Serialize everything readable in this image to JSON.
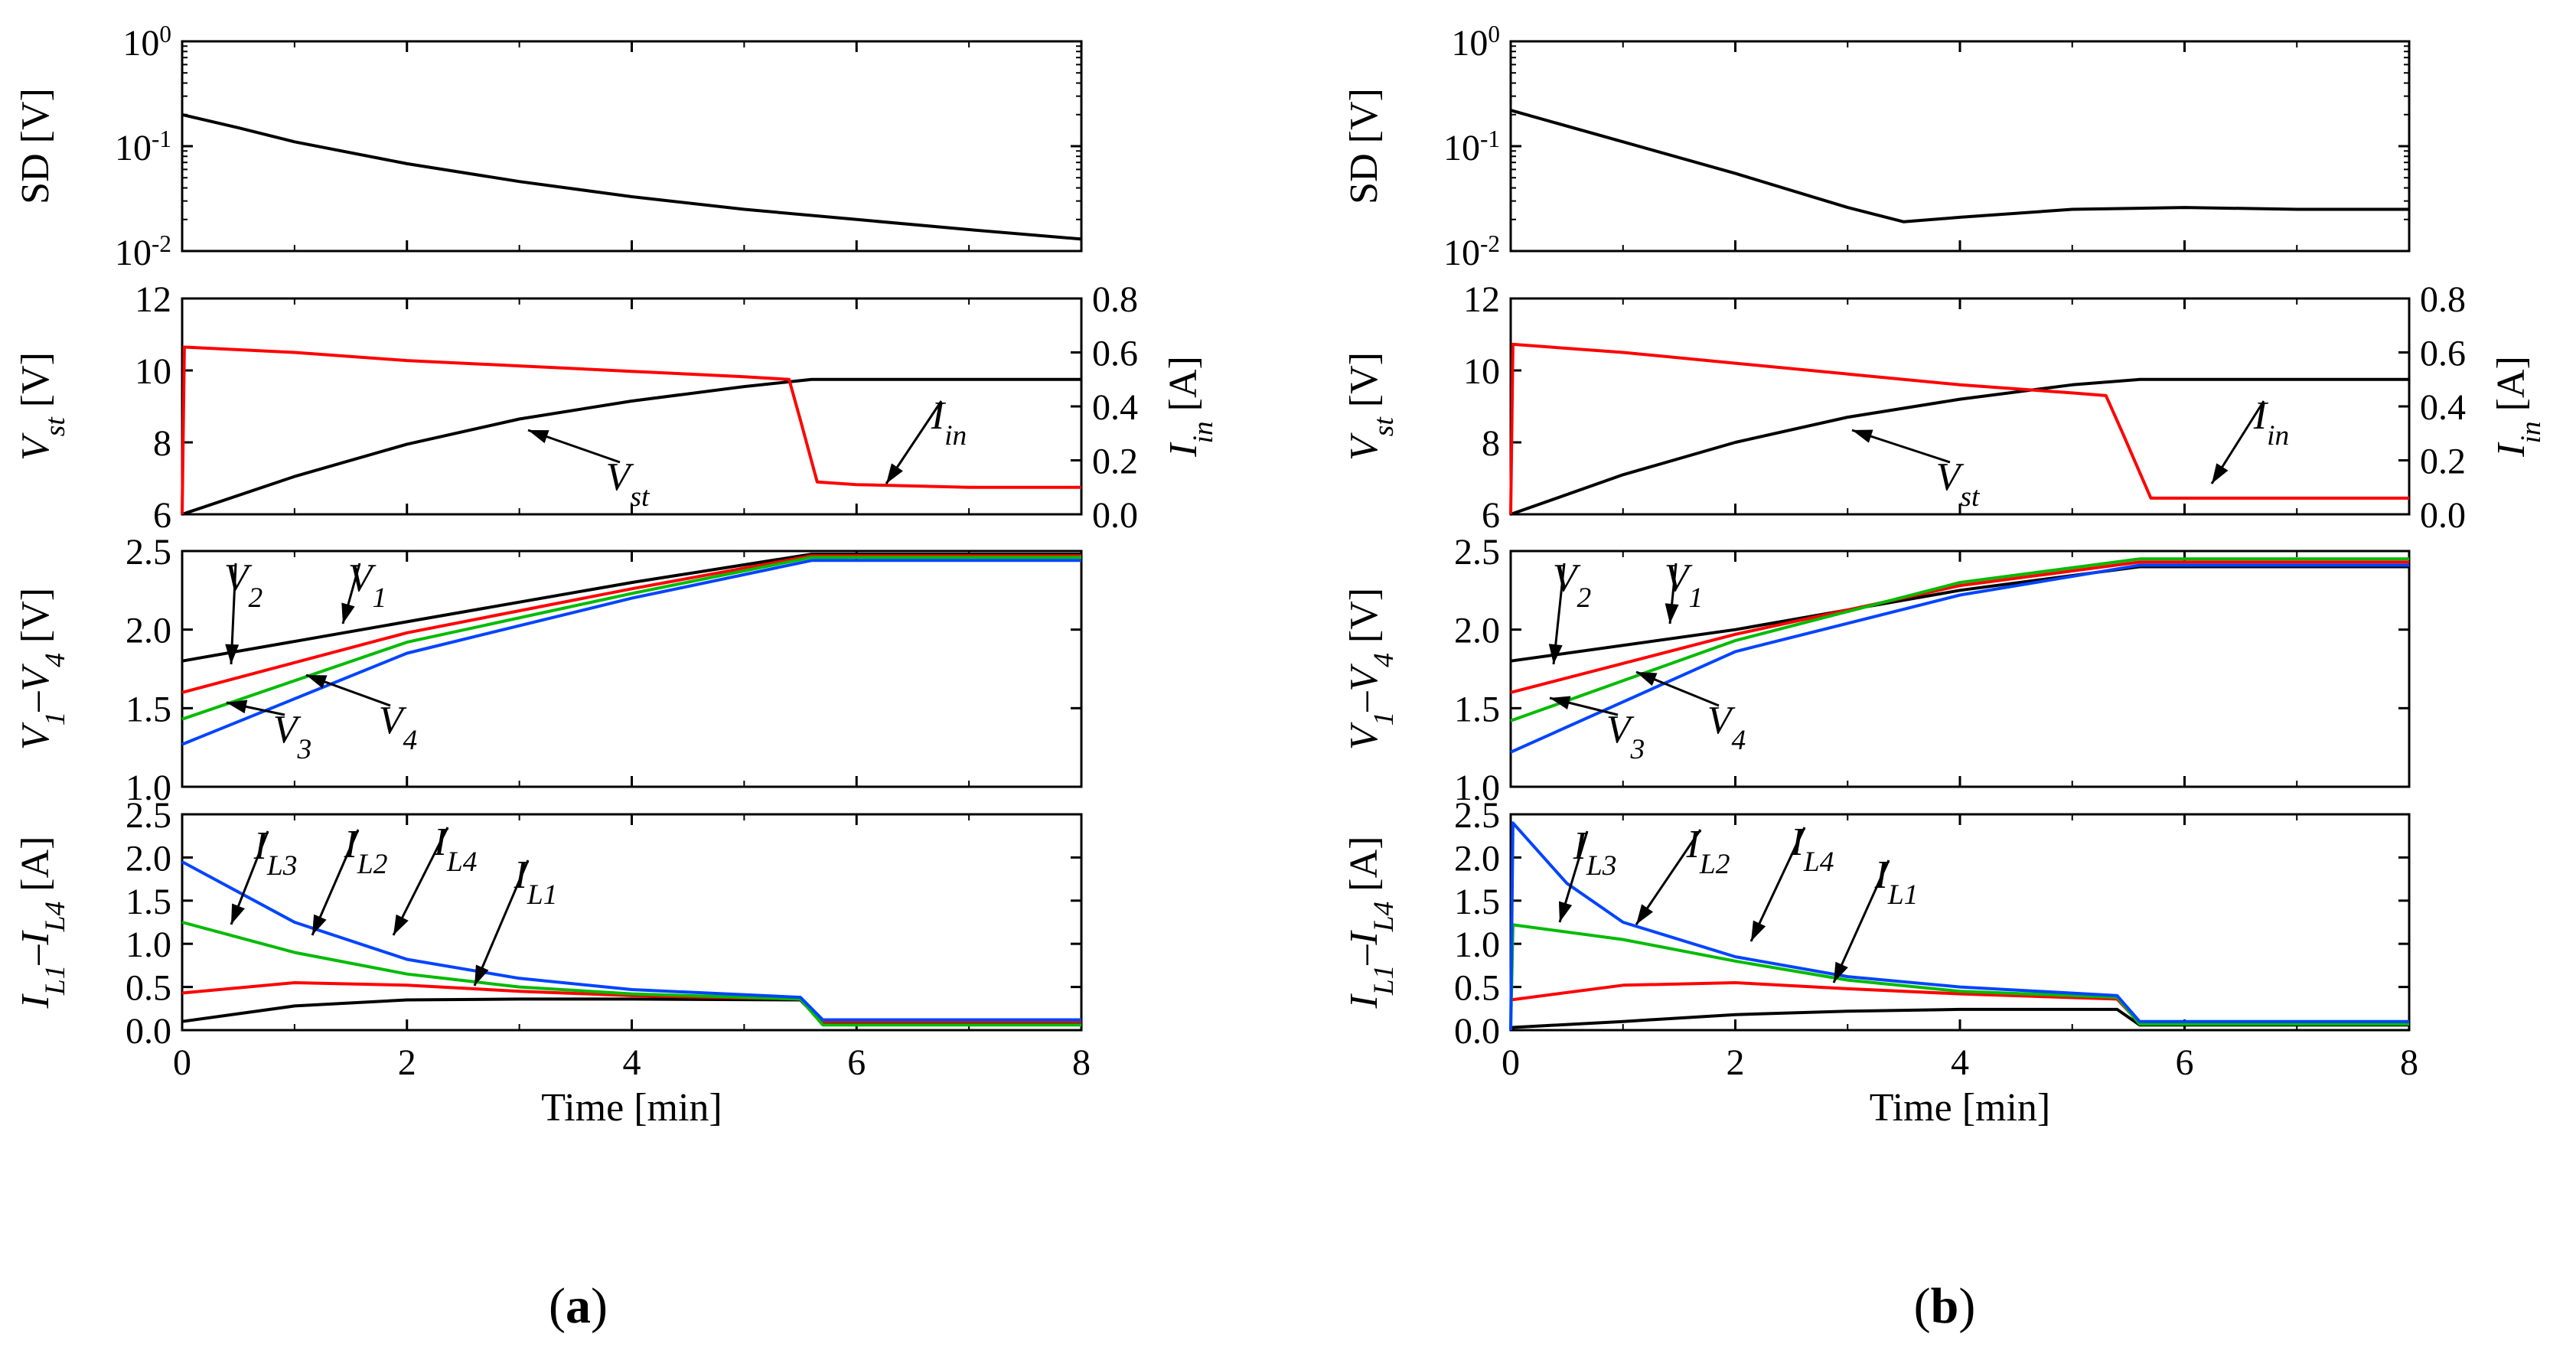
{
  "panel_labels": [
    "(a)",
    "(b)"
  ],
  "x_axis": {
    "label": "Time [min]",
    "ticks": [
      "0",
      "2",
      "4",
      "6",
      "8"
    ],
    "range": [
      0,
      8
    ]
  },
  "chart_data": [
    {
      "panel": "a",
      "type": "line",
      "shared_x": {
        "label": "Time [min]",
        "unit": "min",
        "range": [
          0,
          8
        ],
        "ticks": [
          0,
          2,
          4,
          6,
          8
        ]
      },
      "subplots": [
        {
          "id": "sd",
          "ylabel": "SD [V]",
          "yscale": "log",
          "ylim": [
            0.01,
            1
          ],
          "yticks": [
            "10^0",
            "10^-1",
            "10^-2"
          ],
          "series": [
            {
              "color": "#000000",
              "x": [
                0,
                0.5,
                1,
                2,
                3,
                4,
                5,
                6,
                7,
                8
              ],
              "y": [
                0.2,
                0.15,
                0.11,
                0.068,
                0.046,
                0.033,
                0.025,
                0.02,
                0.016,
                0.013
              ]
            }
          ]
        },
        {
          "id": "vst",
          "ylabel": "V_st [V]",
          "ylim": [
            6,
            12
          ],
          "yticks": [
            "6",
            "8",
            "10",
            "12"
          ],
          "y2label": "I_in [A]",
          "y2lim": [
            0.0,
            0.8
          ],
          "y2ticks": [
            "0.0",
            "0.2",
            "0.4",
            "0.6",
            "0.8"
          ],
          "series": [
            {
              "name": "V_st",
              "axis": "left",
              "color": "#000000",
              "x": [
                0,
                1,
                2,
                3,
                4,
                5,
                5.6,
                6,
                8
              ],
              "y": [
                6.0,
                7.05,
                7.95,
                8.65,
                9.15,
                9.55,
                9.75,
                9.75,
                9.75
              ]
            },
            {
              "name": "I_in",
              "axis": "right",
              "color": "#ff0000",
              "x": [
                0,
                0.02,
                1,
                2,
                3,
                4,
                5,
                5.4,
                5.5,
                5.65,
                6,
                7,
                8
              ],
              "y": [
                0.0,
                0.62,
                0.6,
                0.57,
                0.55,
                0.53,
                0.51,
                0.5,
                0.35,
                0.12,
                0.11,
                0.1,
                0.1
              ]
            }
          ],
          "annotations": [
            "V_st",
            "I_in"
          ]
        },
        {
          "id": "v",
          "ylabel": "V_1–V_4 [V]",
          "ylim": [
            1.0,
            2.5
          ],
          "yticks": [
            "1.0",
            "1.5",
            "2.0",
            "2.5"
          ],
          "series": [
            {
              "name": "V_1",
              "color": "#000000",
              "x": [
                0,
                2,
                4,
                5.6,
                8
              ],
              "y": [
                1.8,
                2.05,
                2.3,
                2.48,
                2.48
              ]
            },
            {
              "name": "V_2",
              "color": "#ff0000",
              "x": [
                0,
                2,
                4,
                5.6,
                8
              ],
              "y": [
                1.6,
                1.98,
                2.26,
                2.47,
                2.47
              ]
            },
            {
              "name": "V_3",
              "color": "#00bb00",
              "x": [
                0,
                2,
                4,
                5.6,
                8
              ],
              "y": [
                1.43,
                1.92,
                2.23,
                2.46,
                2.46
              ]
            },
            {
              "name": "V_4",
              "color": "#0044ff",
              "x": [
                0,
                2,
                4,
                5.6,
                8
              ],
              "y": [
                1.27,
                1.85,
                2.2,
                2.44,
                2.44
              ]
            }
          ],
          "annotations": [
            "V_1",
            "V_2",
            "V_3",
            "V_4"
          ]
        },
        {
          "id": "il",
          "ylabel": "I_L1–I_L4 [A]",
          "ylim": [
            0.0,
            2.5
          ],
          "yticks": [
            "0.0",
            "0.5",
            "1.0",
            "1.5",
            "2.0",
            "2.5"
          ],
          "series": [
            {
              "name": "I_L1",
              "color": "#000000",
              "x": [
                0,
                1,
                2,
                3,
                4,
                5.5,
                5.7,
                8
              ],
              "y": [
                0.1,
                0.28,
                0.35,
                0.36,
                0.36,
                0.35,
                0.08,
                0.08
              ]
            },
            {
              "name": "I_L2",
              "color": "#ff0000",
              "x": [
                0,
                1,
                2,
                3,
                4,
                5.5,
                5.7,
                8
              ],
              "y": [
                0.43,
                0.55,
                0.52,
                0.45,
                0.4,
                0.36,
                0.1,
                0.1
              ]
            },
            {
              "name": "I_L3",
              "color": "#00bb00",
              "x": [
                0,
                1,
                2,
                3,
                4,
                5.5,
                5.7,
                8
              ],
              "y": [
                1.25,
                0.9,
                0.65,
                0.5,
                0.42,
                0.36,
                0.06,
                0.06
              ]
            },
            {
              "name": "I_L4",
              "color": "#0044ff",
              "x": [
                0,
                1,
                2,
                3,
                4,
                5.5,
                5.7,
                8
              ],
              "y": [
                1.95,
                1.25,
                0.82,
                0.6,
                0.47,
                0.38,
                0.12,
                0.12
              ]
            }
          ],
          "annotations": [
            "I_L3",
            "I_L2",
            "I_L4",
            "I_L1"
          ]
        }
      ]
    },
    {
      "panel": "b",
      "type": "line",
      "shared_x": {
        "label": "Time [min]",
        "unit": "min",
        "range": [
          0,
          8
        ],
        "ticks": [
          0,
          2,
          4,
          6,
          8
        ]
      },
      "subplots": [
        {
          "id": "sd",
          "ylabel": "SD [V]",
          "yscale": "log",
          "ylim": [
            0.01,
            1
          ],
          "yticks": [
            "10^0",
            "10^-1",
            "10^-2"
          ],
          "series": [
            {
              "color": "#000000",
              "x": [
                0,
                1,
                2,
                3,
                3.5,
                4,
                5,
                6,
                7,
                8
              ],
              "y": [
                0.22,
                0.11,
                0.055,
                0.026,
                0.019,
                0.021,
                0.025,
                0.026,
                0.025,
                0.025
              ]
            }
          ]
        },
        {
          "id": "vst",
          "ylabel": "V_st [V]",
          "ylim": [
            6,
            12
          ],
          "yticks": [
            "6",
            "8",
            "10",
            "12"
          ],
          "y2label": "I_in [A]",
          "y2lim": [
            0.0,
            0.8
          ],
          "y2ticks": [
            "0.0",
            "0.2",
            "0.4",
            "0.6",
            "0.8"
          ],
          "series": [
            {
              "name": "V_st",
              "axis": "left",
              "color": "#000000",
              "x": [
                0,
                1,
                2,
                3,
                4,
                5,
                5.6,
                6,
                8
              ],
              "y": [
                6.0,
                7.1,
                8.0,
                8.7,
                9.2,
                9.6,
                9.75,
                9.75,
                9.75
              ]
            },
            {
              "name": "I_in",
              "axis": "right",
              "color": "#ff0000",
              "x": [
                0,
                0.02,
                1,
                2,
                3,
                4,
                5,
                5.3,
                5.45,
                5.7,
                6,
                7,
                8
              ],
              "y": [
                0.0,
                0.63,
                0.6,
                0.56,
                0.52,
                0.48,
                0.45,
                0.44,
                0.3,
                0.06,
                0.06,
                0.06,
                0.06
              ]
            }
          ],
          "annotations": [
            "V_st",
            "I_in"
          ]
        },
        {
          "id": "v",
          "ylabel": "V_1–V_4 [V]",
          "ylim": [
            1.0,
            2.5
          ],
          "yticks": [
            "1.0",
            "1.5",
            "2.0",
            "2.5"
          ],
          "series": [
            {
              "name": "V_1",
              "color": "#000000",
              "x": [
                0,
                2,
                4,
                5.6,
                8
              ],
              "y": [
                1.8,
                2.0,
                2.25,
                2.4,
                2.4
              ]
            },
            {
              "name": "V_2",
              "color": "#ff0000",
              "x": [
                0,
                2,
                4,
                5.6,
                8
              ],
              "y": [
                1.6,
                1.97,
                2.28,
                2.43,
                2.43
              ]
            },
            {
              "name": "V_3",
              "color": "#00bb00",
              "x": [
                0,
                2,
                4,
                5.6,
                8
              ],
              "y": [
                1.42,
                1.93,
                2.3,
                2.45,
                2.45
              ]
            },
            {
              "name": "V_4",
              "color": "#0044ff",
              "x": [
                0,
                2,
                4,
                5.6,
                8
              ],
              "y": [
                1.22,
                1.86,
                2.22,
                2.41,
                2.41
              ]
            }
          ],
          "annotations": [
            "V_1",
            "V_2",
            "V_3",
            "V_4"
          ]
        },
        {
          "id": "il",
          "ylabel": "I_L1–I_L4 [A]",
          "ylim": [
            0.0,
            2.5
          ],
          "yticks": [
            "0.0",
            "0.5",
            "1.0",
            "1.5",
            "2.0",
            "2.5"
          ],
          "series": [
            {
              "name": "I_L1",
              "color": "#000000",
              "x": [
                0,
                1,
                2,
                3,
                4,
                5.4,
                5.6,
                8
              ],
              "y": [
                0.03,
                0.1,
                0.18,
                0.22,
                0.24,
                0.24,
                0.06,
                0.06
              ]
            },
            {
              "name": "I_L2",
              "color": "#ff0000",
              "x": [
                0,
                1,
                2,
                3,
                4,
                5.4,
                5.6,
                8
              ],
              "y": [
                0.35,
                0.52,
                0.55,
                0.48,
                0.42,
                0.36,
                0.08,
                0.08
              ]
            },
            {
              "name": "I_L3",
              "color": "#00bb00",
              "x": [
                0,
                0.02,
                1,
                2,
                3,
                4,
                5.4,
                5.6,
                8
              ],
              "y": [
                0.0,
                1.22,
                1.05,
                0.8,
                0.58,
                0.45,
                0.38,
                0.07,
                0.07
              ]
            },
            {
              "name": "I_L4",
              "color": "#0044ff",
              "x": [
                0,
                0.02,
                0.5,
                1,
                2,
                3,
                4,
                5.4,
                5.6,
                8
              ],
              "y": [
                0.0,
                2.4,
                1.7,
                1.25,
                0.85,
                0.62,
                0.5,
                0.4,
                0.1,
                0.1
              ]
            }
          ],
          "annotations": [
            "I_L3",
            "I_L2",
            "I_L4",
            "I_L1"
          ]
        }
      ]
    }
  ]
}
